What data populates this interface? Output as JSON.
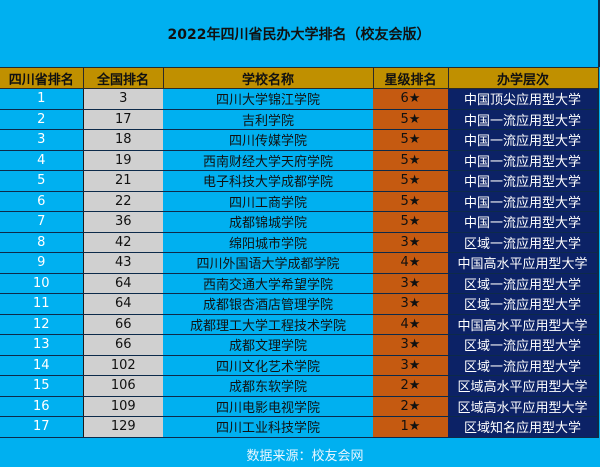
{
  "title": "2022年四川省民办大学排名（校友会版）",
  "columns": [
    "四川省排名",
    "全国排名",
    "学校名称",
    "星级排名",
    "办学层次"
  ],
  "rows": [
    {
      "prov": "1",
      "nat": "3",
      "name": "四川大学锦江学院",
      "star": "6★",
      "level": "中国顶尖应用型大学"
    },
    {
      "prov": "2",
      "nat": "17",
      "name": "吉利学院",
      "star": "5★",
      "level": "中国一流应用型大学"
    },
    {
      "prov": "3",
      "nat": "18",
      "name": "四川传媒学院",
      "star": "5★",
      "level": "中国一流应用型大学"
    },
    {
      "prov": "4",
      "nat": "19",
      "name": "西南财经大学天府学院",
      "star": "5★",
      "level": "中国一流应用型大学"
    },
    {
      "prov": "5",
      "nat": "21",
      "name": "电子科技大学成都学院",
      "star": "5★",
      "level": "中国一流应用型大学"
    },
    {
      "prov": "6",
      "nat": "22",
      "name": "四川工商学院",
      "star": "5★",
      "level": "中国一流应用型大学"
    },
    {
      "prov": "7",
      "nat": "36",
      "name": "成都锦城学院",
      "star": "5★",
      "level": "中国一流应用型大学"
    },
    {
      "prov": "8",
      "nat": "42",
      "name": "绵阳城市学院",
      "star": "3★",
      "level": "区域一流应用型大学"
    },
    {
      "prov": "9",
      "nat": "43",
      "name": "四川外国语大学成都学院",
      "star": "4★",
      "level": "中国高水平应用型大学"
    },
    {
      "prov": "10",
      "nat": "64",
      "name": "西南交通大学希望学院",
      "star": "3★",
      "level": "区域一流应用型大学"
    },
    {
      "prov": "11",
      "nat": "64",
      "name": "成都银杏酒店管理学院",
      "star": "3★",
      "level": "区域一流应用型大学"
    },
    {
      "prov": "12",
      "nat": "66",
      "name": "成都理工大学工程技术学院",
      "star": "4★",
      "level": "中国高水平应用型大学"
    },
    {
      "prov": "13",
      "nat": "66",
      "name": "成都文理学院",
      "star": "3★",
      "level": "区域一流应用型大学"
    },
    {
      "prov": "14",
      "nat": "102",
      "name": "四川文化艺术学院",
      "star": "3★",
      "level": "区域一流应用型大学"
    },
    {
      "prov": "15",
      "nat": "106",
      "name": "成都东软学院",
      "star": "2★",
      "level": "区域高水平应用型大学"
    },
    {
      "prov": "16",
      "nat": "109",
      "name": "四川电影电视学院",
      "star": "2★",
      "level": "区域高水平应用型大学"
    },
    {
      "prov": "17",
      "nat": "129",
      "name": "四川工业科技学院",
      "star": "1★",
      "level": "区域知名应用型大学"
    }
  ],
  "footer": "数据来源：校友会网",
  "colors": {
    "background": "#00b0f0",
    "header": "#c09000",
    "national_rank_cell": "#d0d0d0",
    "star_cell": "#c55a11",
    "level_cell": "#0c2266"
  }
}
